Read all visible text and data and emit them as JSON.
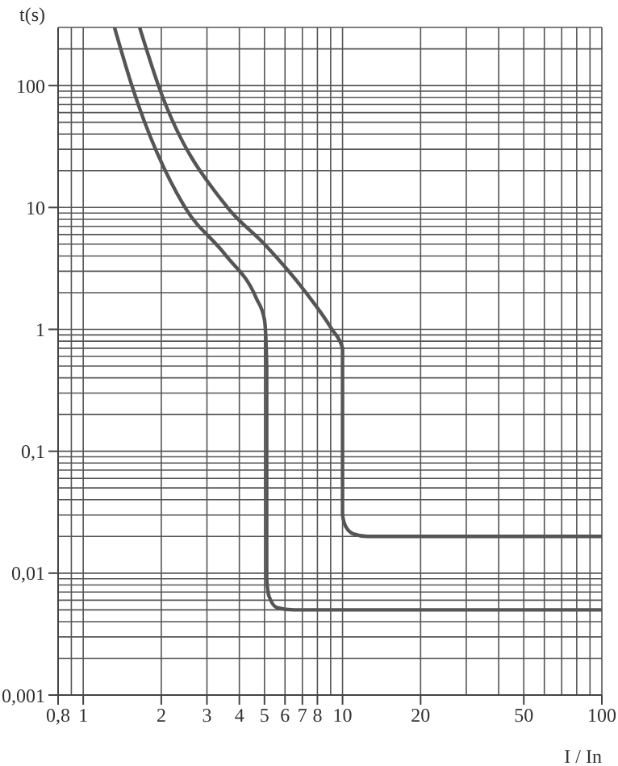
{
  "chart_data": {
    "type": "line",
    "xlabel": "I / In",
    "ylabel": "t(s)",
    "log": "xy",
    "grid": true,
    "marker": "none",
    "line_style": "solid",
    "xlim": [
      0.8,
      100
    ],
    "ylim": [
      0.001,
      300
    ],
    "xticks": [
      {
        "value": 0.8,
        "label": "0,8"
      },
      1,
      2,
      3,
      4,
      5,
      6,
      7,
      8,
      10,
      20,
      50,
      100
    ],
    "yticks": [
      {
        "value": 0.001,
        "label": "0,001"
      },
      {
        "value": 0.01,
        "label": "0,01"
      },
      {
        "value": 0.1,
        "label": "0,1"
      },
      1,
      10,
      100
    ],
    "series": [
      {
        "color": "#555555",
        "x": [
          1.32,
          1.54,
          2.47,
          3.53,
          4.65,
          5.0,
          5.1,
          5.1,
          5.2,
          5.6,
          6.5,
          100
        ],
        "values": [
          300,
          100,
          10,
          4.1,
          1.8,
          1.2,
          0.5,
          0.009,
          0.0065,
          0.0052,
          0.005,
          0.005
        ]
      },
      {
        "color": "#555555",
        "x": [
          1.65,
          1.95,
          3.6,
          5.0,
          7.1,
          9.1,
          10,
          10,
          10.3,
          11,
          12.5,
          100
        ],
        "values": [
          300,
          100,
          10,
          5,
          2.1,
          1,
          0.7,
          0.03,
          0.024,
          0.021,
          0.02,
          0.02
        ]
      }
    ]
  }
}
